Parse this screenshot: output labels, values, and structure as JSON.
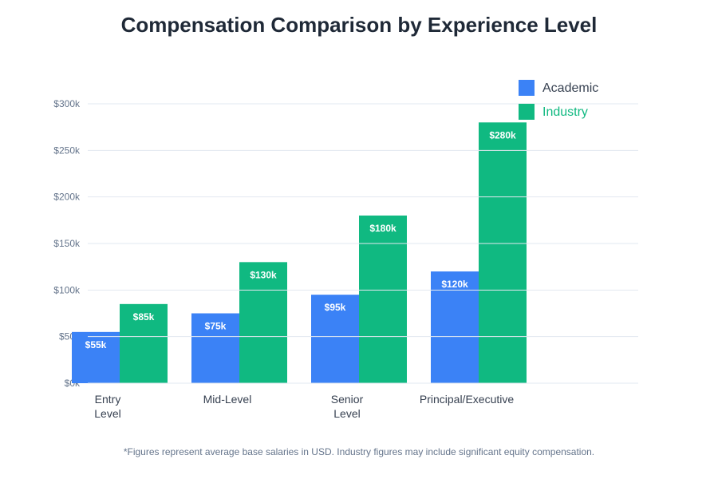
{
  "chart_data": {
    "type": "bar",
    "title": "Compensation Comparison by Experience Level",
    "xlabel": "",
    "ylabel": "",
    "ylim": [
      0,
      300000
    ],
    "yticks": [
      0,
      50000,
      100000,
      150000,
      200000,
      250000,
      300000
    ],
    "ytick_labels": [
      "$0k",
      "$50k",
      "$100k",
      "$150k",
      "$200k",
      "$250k",
      "$300k"
    ],
    "grid": true,
    "legend_position": "top-right",
    "categories": [
      [
        "Entry",
        "Level"
      ],
      [
        "Mid-Level"
      ],
      [
        "Senior",
        "Level"
      ],
      [
        "Principal/Executive"
      ]
    ],
    "series": [
      {
        "name": "Academic",
        "color": "#3b82f6",
        "values": [
          55000,
          75000,
          95000,
          120000
        ],
        "labels": [
          "$55k",
          "$75k",
          "$95k",
          "$120k"
        ],
        "legend_text_color": "#374151"
      },
      {
        "name": "Industry",
        "color": "#10b981",
        "values": [
          85000,
          130000,
          180000,
          280000
        ],
        "labels": [
          "$85k",
          "$130k",
          "$180k",
          "$280k"
        ],
        "legend_text_color": "#10b981"
      }
    ],
    "footnote": "*Figures represent average base salaries in USD. Industry figures may include significant equity compensation."
  }
}
